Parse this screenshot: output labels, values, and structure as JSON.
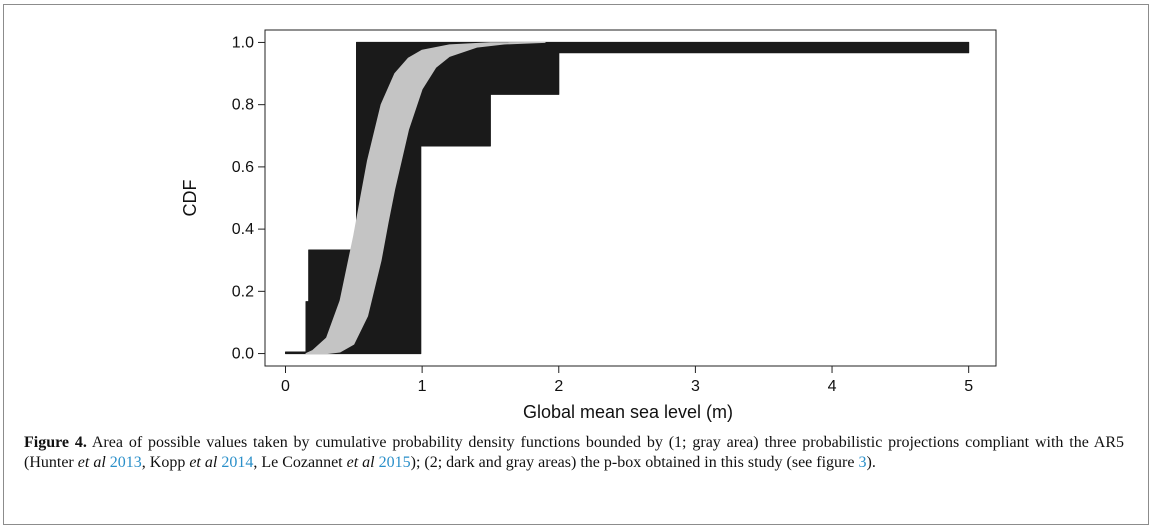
{
  "chart_data": {
    "type": "area",
    "xlabel": "Global mean sea level (m)",
    "ylabel": "CDF",
    "xlim": [
      -0.15,
      5.2
    ],
    "ylim": [
      -0.04,
      1.04
    ],
    "x_ticks": [
      "0",
      "1",
      "2",
      "3",
      "4",
      "5"
    ],
    "y_ticks": [
      "0.0",
      "0.2",
      "0.4",
      "0.6",
      "0.8",
      "1.0"
    ],
    "series": [
      {
        "fill": "dark",
        "color": "#1a1a1a",
        "upper": [
          [
            0.0,
            0.0
          ],
          [
            0.0,
            0.005
          ],
          [
            0.15,
            0.005
          ],
          [
            0.15,
            0.167
          ],
          [
            0.17,
            0.167
          ],
          [
            0.17,
            0.333
          ],
          [
            0.52,
            0.333
          ],
          [
            0.52,
            1.0
          ],
          [
            5.0,
            1.0
          ]
        ],
        "lower": [
          [
            0.0,
            0.0
          ],
          [
            0.99,
            0.0
          ],
          [
            0.99,
            0.667
          ],
          [
            1.5,
            0.667
          ],
          [
            1.5,
            0.833
          ],
          [
            2.0,
            0.833
          ],
          [
            2.0,
            0.967
          ],
          [
            5.0,
            0.967
          ]
        ]
      },
      {
        "fill": "gray",
        "color": "#c4c4c4",
        "upper": [
          [
            0.15,
            0.0
          ],
          [
            0.2,
            0.01
          ],
          [
            0.3,
            0.05
          ],
          [
            0.4,
            0.17
          ],
          [
            0.5,
            0.38
          ],
          [
            0.55,
            0.5
          ],
          [
            0.6,
            0.62
          ],
          [
            0.7,
            0.8
          ],
          [
            0.8,
            0.9
          ],
          [
            0.9,
            0.95
          ],
          [
            1.0,
            0.975
          ],
          [
            1.2,
            0.992
          ],
          [
            1.5,
            0.999
          ],
          [
            1.9,
            1.0
          ]
        ],
        "lower": [
          [
            0.15,
            0.0
          ],
          [
            0.3,
            0.0
          ],
          [
            0.4,
            0.005
          ],
          [
            0.5,
            0.03
          ],
          [
            0.6,
            0.12
          ],
          [
            0.7,
            0.3
          ],
          [
            0.75,
            0.42
          ],
          [
            0.8,
            0.53
          ],
          [
            0.9,
            0.72
          ],
          [
            1.0,
            0.85
          ],
          [
            1.1,
            0.92
          ],
          [
            1.2,
            0.955
          ],
          [
            1.4,
            0.985
          ],
          [
            1.6,
            0.995
          ],
          [
            1.9,
            1.0
          ]
        ]
      }
    ]
  },
  "caption": {
    "label": "Figure 4.",
    "text_1": " Area of possible values taken by cumulative probability density functions bounded by (1; gray area) three probabilistic projections compliant with the AR5 (Hunter ",
    "etal_1": "et al",
    "year_1": "2013",
    "text_2": ", Kopp ",
    "etal_2": "et al",
    "year_2": "2014",
    "text_3": ", Le Cozannet ",
    "etal_3": "et al",
    "year_3": "2015",
    "text_4": "); (2; dark and gray areas) the p-box obtained in this study (see figure ",
    "fig_ref": "3",
    "text_5": ")."
  }
}
